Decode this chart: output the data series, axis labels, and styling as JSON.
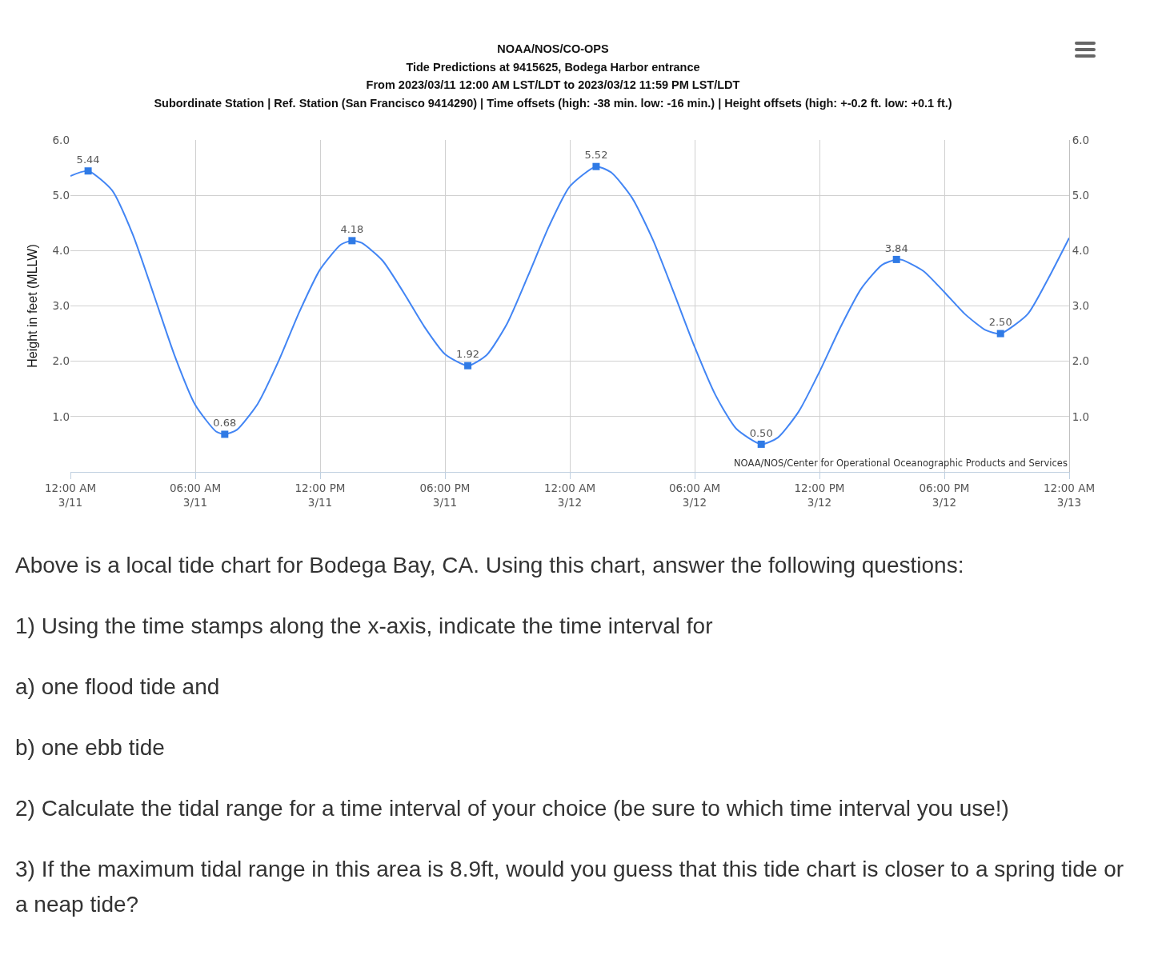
{
  "chart_data": {
    "type": "line",
    "title": "NOAA/NOS/CO-OPS",
    "subtitle": "Tide Predictions at 9415625, Bodega Harbor entrance\nFrom 2023/03/11 12:00 AM LST/LDT to 2023/03/12 11:59 PM LST/LDT\nSubordinate Station | Ref. Station (San Francisco 9414290) | Time offsets (high: -38 min. low: -16 min.) | Height offsets (high: +-0.2 ft. low: +0.1 ft.)",
    "ylabel": "Height in feet (MLLW)",
    "xlim": [
      "2023-03-11T00:00",
      "2023-03-13T00:00"
    ],
    "xticks": [
      {
        "value": "2023-03-11T00:00",
        "label": "12:00 AM\n3/11"
      },
      {
        "value": "2023-03-11T06:00",
        "label": "06:00 AM\n3/11"
      },
      {
        "value": "2023-03-11T12:00",
        "label": "12:00 PM\n3/11"
      },
      {
        "value": "2023-03-11T18:00",
        "label": "06:00 PM\n3/11"
      },
      {
        "value": "2023-03-12T00:00",
        "label": "12:00 AM\n3/12"
      },
      {
        "value": "2023-03-12T06:00",
        "label": "06:00 AM\n3/12"
      },
      {
        "value": "2023-03-12T12:00",
        "label": "12:00 PM\n3/12"
      },
      {
        "value": "2023-03-12T18:00",
        "label": "06:00 PM\n3/12"
      },
      {
        "value": "2023-03-13T00:00",
        "label": "12:00 AM\n3/13"
      }
    ],
    "ylim": [
      0,
      6
    ],
    "yticks": [
      {
        "value": 1,
        "label": "1.0"
      },
      {
        "value": 2,
        "label": "2.0"
      },
      {
        "value": 3,
        "label": "3.0"
      },
      {
        "value": 4,
        "label": "4.0"
      },
      {
        "value": 5,
        "label": "5.0"
      },
      {
        "value": 6,
        "label": "6.0"
      }
    ],
    "y2lim": [
      0,
      6
    ],
    "y2ticks": [
      {
        "value": 1,
        "label": "1.0"
      },
      {
        "value": 2,
        "label": "2.0"
      },
      {
        "value": 3,
        "label": "3.0"
      },
      {
        "value": 4,
        "label": "4.0"
      },
      {
        "value": 5,
        "label": "5.0"
      },
      {
        "value": 6,
        "label": "6.0"
      }
    ],
    "grid": true,
    "series": [
      {
        "color": "#4285f4",
        "marker": "none",
        "line_style": "solid",
        "x": [
          "2023-03-11T00:00",
          "2023-03-11T00:51",
          "2023-03-11T02:00",
          "2023-03-11T03:00",
          "2023-03-11T04:00",
          "2023-03-11T05:00",
          "2023-03-11T06:00",
          "2023-03-11T07:00",
          "2023-03-11T07:25",
          "2023-03-11T08:00",
          "2023-03-11T09:00",
          "2023-03-11T10:00",
          "2023-03-11T11:00",
          "2023-03-11T12:00",
          "2023-03-11T13:00",
          "2023-03-11T13:32",
          "2023-03-11T14:00",
          "2023-03-11T15:00",
          "2023-03-11T16:00",
          "2023-03-11T17:00",
          "2023-03-11T18:00",
          "2023-03-11T19:06",
          "2023-03-11T20:00",
          "2023-03-11T21:00",
          "2023-03-11T22:00",
          "2023-03-11T23:00",
          "2023-03-12T00:00",
          "2023-03-12T01:16",
          "2023-03-12T02:00",
          "2023-03-12T03:00",
          "2023-03-12T04:00",
          "2023-03-12T05:00",
          "2023-03-12T06:00",
          "2023-03-12T07:00",
          "2023-03-12T08:00",
          "2023-03-12T09:12",
          "2023-03-12T10:00",
          "2023-03-12T11:00",
          "2023-03-12T12:00",
          "2023-03-12T13:00",
          "2023-03-12T14:00",
          "2023-03-12T15:00",
          "2023-03-12T15:42",
          "2023-03-12T16:00",
          "2023-03-12T17:00",
          "2023-03-12T18:00",
          "2023-03-12T19:00",
          "2023-03-12T20:00",
          "2023-03-12T20:42",
          "2023-03-12T22:00",
          "2023-03-12T23:00",
          "2023-03-13T00:00"
        ],
        "values": [
          5.35,
          5.44,
          5.09,
          4.29,
          3.21,
          2.11,
          1.21,
          0.73,
          0.68,
          0.76,
          1.23,
          2.0,
          2.89,
          3.66,
          4.11,
          4.18,
          4.14,
          3.82,
          3.25,
          2.63,
          2.13,
          1.92,
          2.11,
          2.69,
          3.55,
          4.44,
          5.16,
          5.52,
          5.41,
          4.95,
          4.19,
          3.24,
          2.26,
          1.39,
          0.78,
          0.5,
          0.62,
          1.09,
          1.81,
          2.61,
          3.31,
          3.74,
          3.84,
          3.83,
          3.63,
          3.25,
          2.85,
          2.56,
          2.5,
          2.85,
          3.5,
          4.23
        ]
      },
      {
        "type": "scatter",
        "color": "#2f7ae5",
        "marker": "square",
        "x": [
          "2023-03-11T00:51",
          "2023-03-11T07:25",
          "2023-03-11T13:32",
          "2023-03-11T19:06",
          "2023-03-12T01:16",
          "2023-03-12T09:12",
          "2023-03-12T15:42",
          "2023-03-12T20:42"
        ],
        "values": [
          5.44,
          0.68,
          4.18,
          1.92,
          5.52,
          0.5,
          3.84,
          2.5
        ],
        "value_labels": [
          "5.44",
          "0.68",
          "4.18",
          "1.92",
          "5.52",
          "0.50",
          "3.84",
          "2.50"
        ]
      }
    ],
    "annotations": [
      "NOAA/NOS/Center for Operational Oceanographic Products and Services",
      "Above is a local tide chart for Bodega Bay, CA. Using this chart, answer the following questions:",
      "1) Using the time stamps along the x-axis, indicate the time interval for",
      "a) one flood tide and",
      "b) one ebb tide",
      "2) Calculate the tidal range for a time interval of your choice (be sure to which time interval you use!)",
      "3) If the maximum tidal range in this area is 8.9ft, would you guess that this tide chart is closer to a spring tide or a neap tide?"
    ]
  }
}
